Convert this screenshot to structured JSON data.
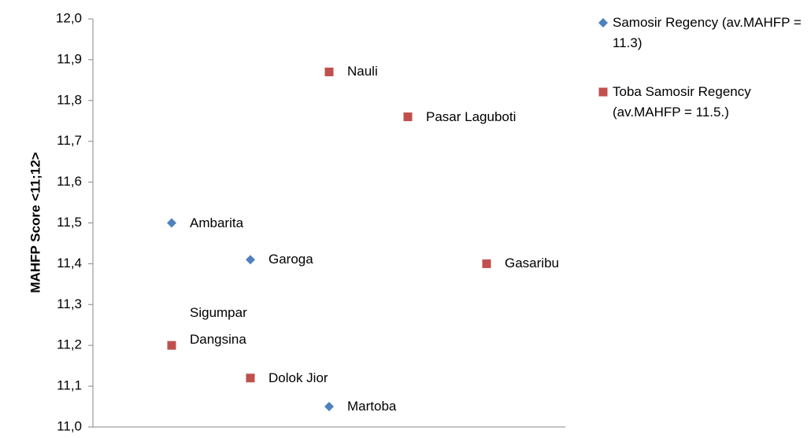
{
  "chart_data": {
    "type": "scatter",
    "ylabel": "MAHFP Score <11;12>",
    "xlim": [
      0,
      6
    ],
    "ylim": [
      11.0,
      12.0
    ],
    "yticks": [
      {
        "value": 11.0,
        "label": "11,0"
      },
      {
        "value": 11.1,
        "label": "11,1"
      },
      {
        "value": 11.2,
        "label": "11,2"
      },
      {
        "value": 11.3,
        "label": "11,3"
      },
      {
        "value": 11.4,
        "label": "11,4"
      },
      {
        "value": 11.5,
        "label": "11,5"
      },
      {
        "value": 11.6,
        "label": "11,6"
      },
      {
        "value": 11.7,
        "label": "11,7"
      },
      {
        "value": 11.8,
        "label": "11,8"
      },
      {
        "value": 11.9,
        "label": "11,9"
      },
      {
        "value": 12.0,
        "label": "12,0"
      }
    ],
    "grid": false,
    "legend": "right",
    "series": [
      {
        "name": "Samosir Regency (av.MAHFP = 11.3)",
        "color": "#4f81bd",
        "marker": "diamond",
        "x": [
          1,
          2,
          3
        ],
        "values": [
          11.5,
          11.41,
          11.05
        ],
        "point_labels": [
          "Ambarita",
          "Garoga",
          "Martoba"
        ]
      },
      {
        "name": "Toba Samosir Regency (av.MAHFP = 11.5.)",
        "color": "#c0504d",
        "marker": "square",
        "x": [
          1,
          2,
          3,
          4,
          5
        ],
        "values": [
          11.2,
          11.12,
          11.87,
          11.76,
          11.4
        ],
        "point_labels": [
          "Sigumpar Dangsina",
          "Dolok Jior",
          "Nauli",
          "Pasar Laguboti",
          "Gasaribu"
        ]
      }
    ]
  }
}
